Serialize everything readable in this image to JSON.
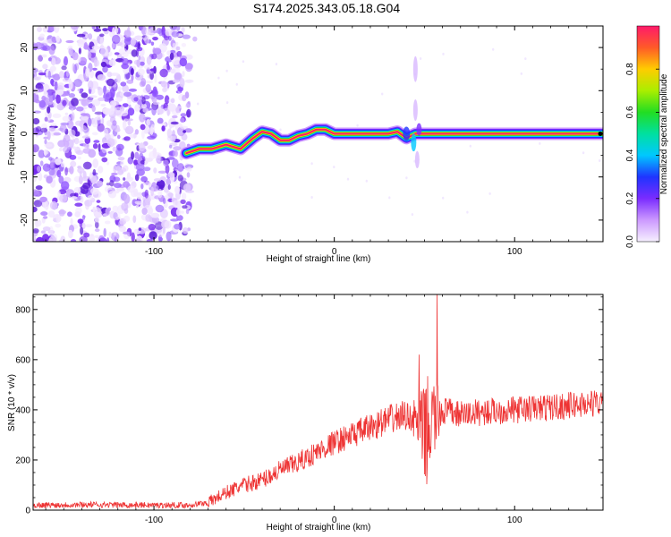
{
  "chart_data": [
    {
      "type": "heatmap",
      "title": "S174.2025.343.05.18.G04",
      "xlabel": "Height of straight line (km)",
      "ylabel": "Frequency (Hz)",
      "xlim": [
        -167,
        149
      ],
      "ylim": [
        -25,
        25
      ],
      "x_ticks": [
        -100,
        0,
        100
      ],
      "y_ticks": [
        -20,
        -10,
        0,
        10,
        20
      ],
      "colorbar": {
        "label": "Normalized spectral amplitude",
        "range": [
          0,
          1
        ],
        "ticks": [
          0.0,
          0.2,
          0.4,
          0.6,
          0.8
        ]
      },
      "ridge": {
        "x": [
          -82,
          -75,
          -68,
          -60,
          -52,
          -45,
          -40,
          -35,
          -30,
          -25,
          -20,
          -15,
          -10,
          -5,
          0,
          10,
          20,
          30,
          35,
          40,
          45,
          50,
          60,
          80,
          100,
          120,
          149
        ],
        "y": [
          -4.5,
          -3.5,
          -3.5,
          -2.5,
          -3.5,
          -1.0,
          0.5,
          0.0,
          -1.5,
          -1.5,
          -0.5,
          0.0,
          1.0,
          1.0,
          0.0,
          0.0,
          0.0,
          0.0,
          0.5,
          -1.0,
          0.0,
          0.0,
          0.0,
          0.0,
          0.0,
          0.0,
          0.0
        ]
      },
      "noise_region_x": [
        -167,
        -80
      ]
    },
    {
      "type": "line",
      "xlabel": "Height of straight line (km)",
      "ylabel": "SNR (10 * v/v)",
      "xlim": [
        -167,
        149
      ],
      "ylim": [
        0,
        860
      ],
      "x_ticks": [
        -100,
        0,
        100
      ],
      "y_ticks": [
        0,
        200,
        400,
        600,
        800
      ],
      "series": [
        {
          "name": "SNR",
          "color": "#ee3333",
          "x": [
            -167,
            -140,
            -100,
            -80,
            -70,
            -60,
            -50,
            -40,
            -30,
            -20,
            -10,
            0,
            10,
            20,
            30,
            40,
            45,
            50,
            55,
            60,
            70,
            80,
            100,
            120,
            149
          ],
          "y": [
            20,
            22,
            20,
            20,
            30,
            70,
            100,
            120,
            160,
            190,
            230,
            270,
            300,
            330,
            360,
            380,
            360,
            300,
            360,
            400,
            380,
            390,
            400,
            410,
            430
          ]
        }
      ],
      "peaks": [
        {
          "x": 47,
          "y": 620
        },
        {
          "x": 57,
          "y": 860
        }
      ]
    }
  ]
}
